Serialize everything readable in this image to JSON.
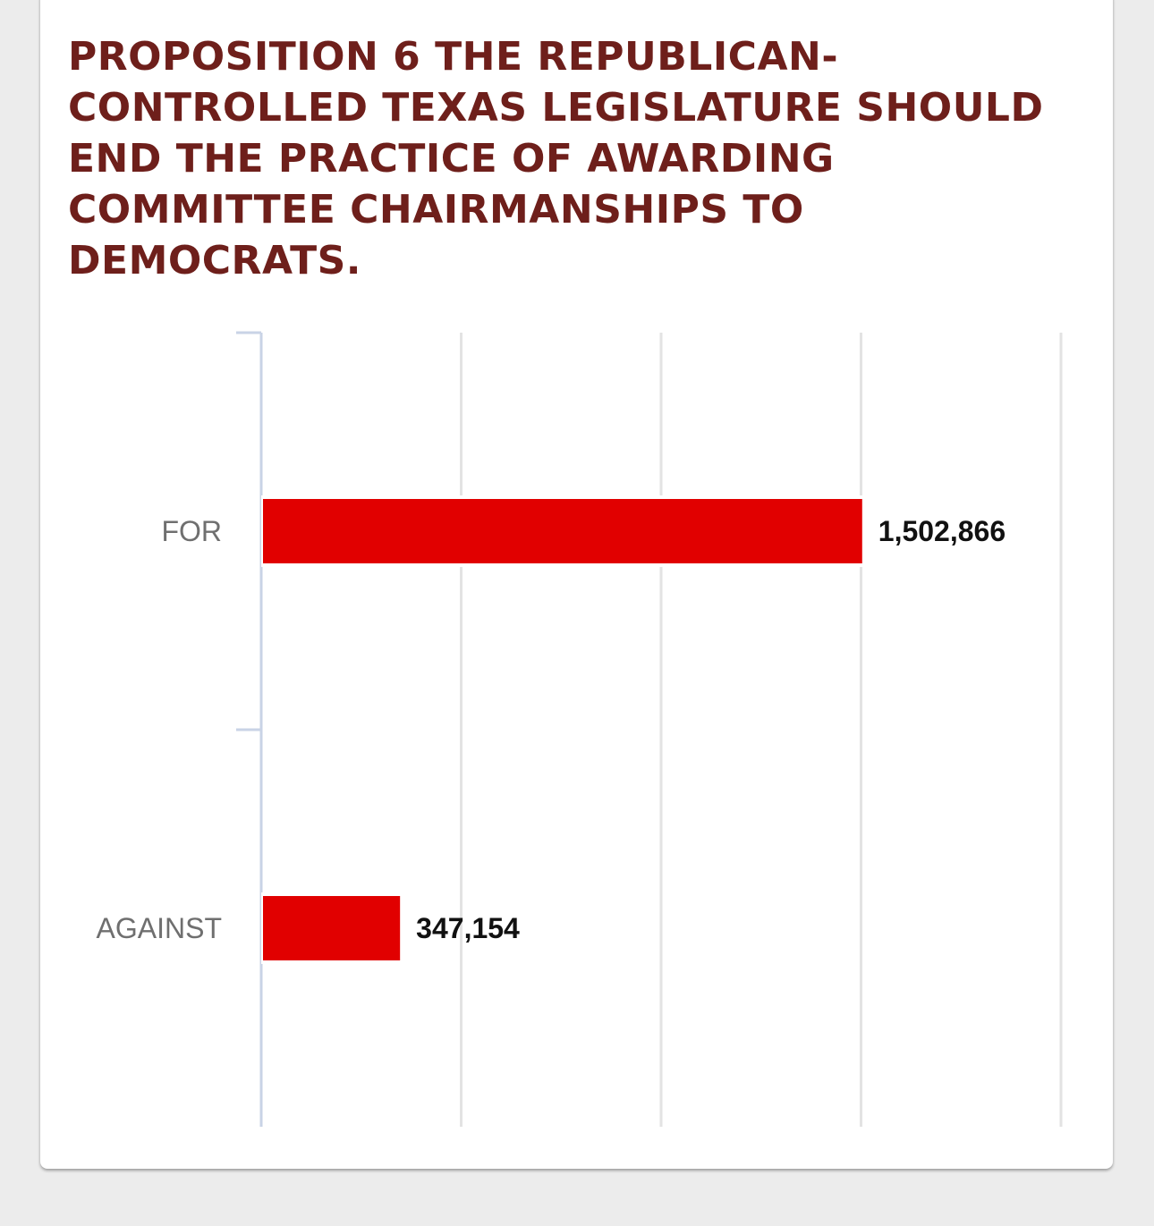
{
  "chart_data": {
    "type": "bar",
    "orientation": "horizontal",
    "title": "PROPOSITION 6 THE REPUBLICAN-CONTROLLED TEXAS LEGISLATURE SHOULD END THE PRACTICE OF AWARDING COMMITTEE CHAIRMANSHIPS TO DEMOCRATS.",
    "categories": [
      "FOR",
      "AGAINST"
    ],
    "values": [
      1502866,
      347154
    ],
    "value_labels": [
      "1,502,866",
      "347,154"
    ],
    "xlim": [
      0,
      2000000
    ],
    "grid_step": 500000,
    "xaxis_tick_labels_visible": false,
    "grid": true,
    "legend": "none",
    "colors": {
      "bar": "#e10000",
      "title": "#6e1f1b",
      "gridline": "#e3e3e3",
      "axis": "#c9d3e6"
    }
  }
}
